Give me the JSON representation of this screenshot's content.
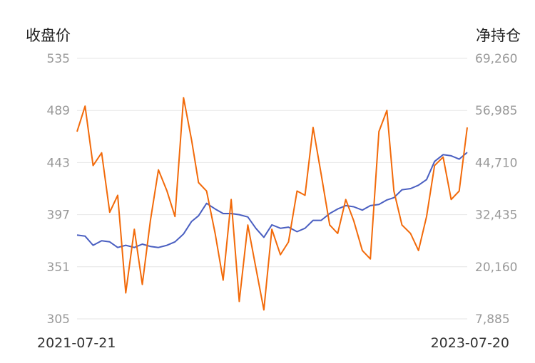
{
  "chart_data": {
    "type": "line",
    "y_left_label": "收盘价",
    "y_right_label": "净持仓",
    "x_range": [
      "2021-07-21",
      "2023-07-20"
    ],
    "x_tick_labels": [
      "2021-07-21",
      "2023-07-20"
    ],
    "y_left_ticks": [
      "535",
      "489",
      "443",
      "397",
      "351",
      "305"
    ],
    "y_right_ticks": [
      "69,260",
      "56,985",
      "44,710",
      "32,435",
      "20,160",
      "7,885"
    ],
    "y_left_range": [
      305,
      535
    ],
    "y_right_range": [
      7885,
      69260
    ],
    "grid": true,
    "series": [
      {
        "axis": "left",
        "color": "#4a5fc1",
        "x": [
          "2021-07-21",
          "2021-08-05",
          "2021-08-20",
          "2021-09-05",
          "2021-09-20",
          "2021-10-05",
          "2021-10-20",
          "2021-11-05",
          "2021-11-20",
          "2021-12-05",
          "2021-12-20",
          "2022-01-05",
          "2022-01-20",
          "2022-02-05",
          "2022-02-20",
          "2022-03-05",
          "2022-03-20",
          "2022-04-05",
          "2022-04-20",
          "2022-05-05",
          "2022-05-20",
          "2022-06-05",
          "2022-06-20",
          "2022-07-05",
          "2022-07-20",
          "2022-08-05",
          "2022-08-20",
          "2022-09-05",
          "2022-09-20",
          "2022-10-05",
          "2022-10-20",
          "2022-11-05",
          "2022-11-20",
          "2022-12-05",
          "2022-12-20",
          "2023-01-05",
          "2023-01-20",
          "2023-02-05",
          "2023-02-20",
          "2023-03-05",
          "2023-03-20",
          "2023-04-05",
          "2023-04-20",
          "2023-05-05",
          "2023-05-20",
          "2023-06-05",
          "2023-06-20",
          "2023-07-05",
          "2023-07-20"
        ],
        "y": [
          379,
          378,
          370,
          374,
          373,
          368,
          370,
          368,
          371,
          369,
          368,
          370,
          373,
          380,
          391,
          396,
          407,
          402,
          398,
          398,
          397,
          395,
          385,
          377,
          388,
          385,
          386,
          382,
          385,
          392,
          392,
          398,
          402,
          405,
          404,
          401,
          405,
          406,
          410,
          412,
          419,
          420,
          423,
          428,
          444,
          450,
          449,
          446,
          452
        ]
      },
      {
        "axis": "right",
        "color": "#f26a0a",
        "x": [
          "2021-07-21",
          "2021-08-05",
          "2021-08-20",
          "2021-09-05",
          "2021-09-20",
          "2021-10-05",
          "2021-10-20",
          "2021-11-05",
          "2021-11-20",
          "2021-12-05",
          "2021-12-20",
          "2022-01-05",
          "2022-01-20",
          "2022-02-05",
          "2022-02-20",
          "2022-03-05",
          "2022-03-20",
          "2022-04-05",
          "2022-04-20",
          "2022-05-05",
          "2022-05-20",
          "2022-06-05",
          "2022-06-20",
          "2022-07-05",
          "2022-07-20",
          "2022-08-05",
          "2022-08-20",
          "2022-09-05",
          "2022-09-20",
          "2022-10-05",
          "2022-10-20",
          "2022-11-05",
          "2022-11-20",
          "2022-12-05",
          "2022-12-20",
          "2023-01-05",
          "2023-01-20",
          "2023-02-05",
          "2023-02-20",
          "2023-03-05",
          "2023-03-20",
          "2023-04-05",
          "2023-04-20",
          "2023-05-05",
          "2023-05-20",
          "2023-06-05",
          "2023-06-20",
          "2023-07-05",
          "2023-07-20"
        ],
        "y": [
          52000,
          58000,
          44000,
          47000,
          33000,
          37000,
          14000,
          29000,
          16000,
          31000,
          43000,
          38000,
          32000,
          60000,
          50000,
          40000,
          38000,
          28000,
          17000,
          36000,
          12000,
          30000,
          20000,
          10000,
          29000,
          23000,
          26000,
          38000,
          37000,
          53000,
          42000,
          30000,
          28000,
          36000,
          31000,
          24000,
          22000,
          52000,
          57000,
          38000,
          30000,
          28000,
          24000,
          32000,
          44000,
          46000,
          36000,
          38000,
          53000
        ]
      }
    ]
  }
}
